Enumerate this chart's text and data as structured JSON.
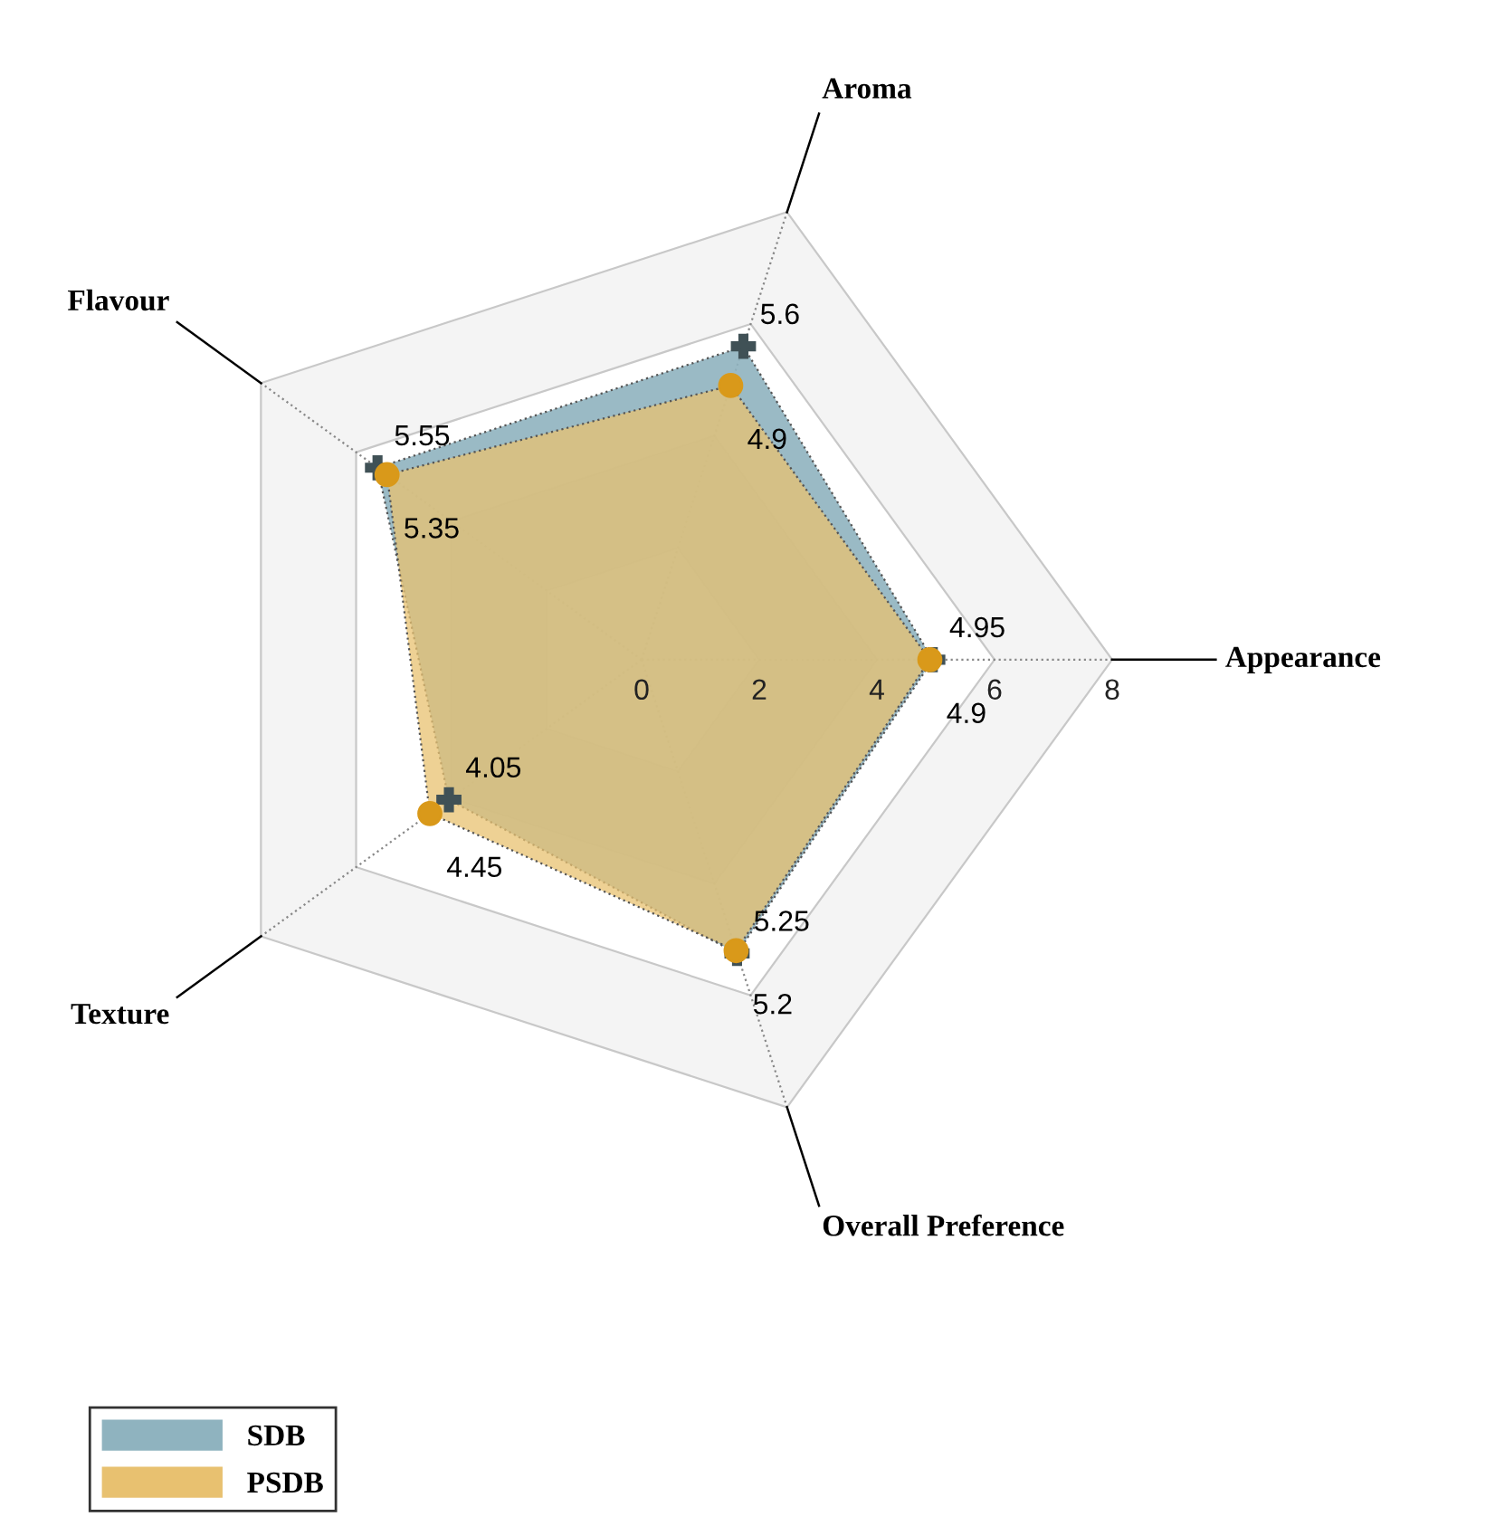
{
  "chart_data": {
    "type": "radar",
    "categories": [
      "Aroma",
      "Appearance",
      "Overall Preference",
      "Texture",
      "Flavour"
    ],
    "series": [
      {
        "name": "SDB",
        "color": "#8fb3bf",
        "marker": "cross",
        "values": [
          5.6,
          4.95,
          5.25,
          4.05,
          5.55
        ]
      },
      {
        "name": "PSDB",
        "color": "#e8c170",
        "marker": "circle",
        "values": [
          4.9,
          4.9,
          5.2,
          4.45,
          5.35
        ]
      }
    ],
    "ylim": [
      0,
      8
    ],
    "yticks": [
      0,
      2,
      4,
      6,
      8
    ],
    "grid": true,
    "data_labels": true,
    "legend": "bottom left"
  }
}
